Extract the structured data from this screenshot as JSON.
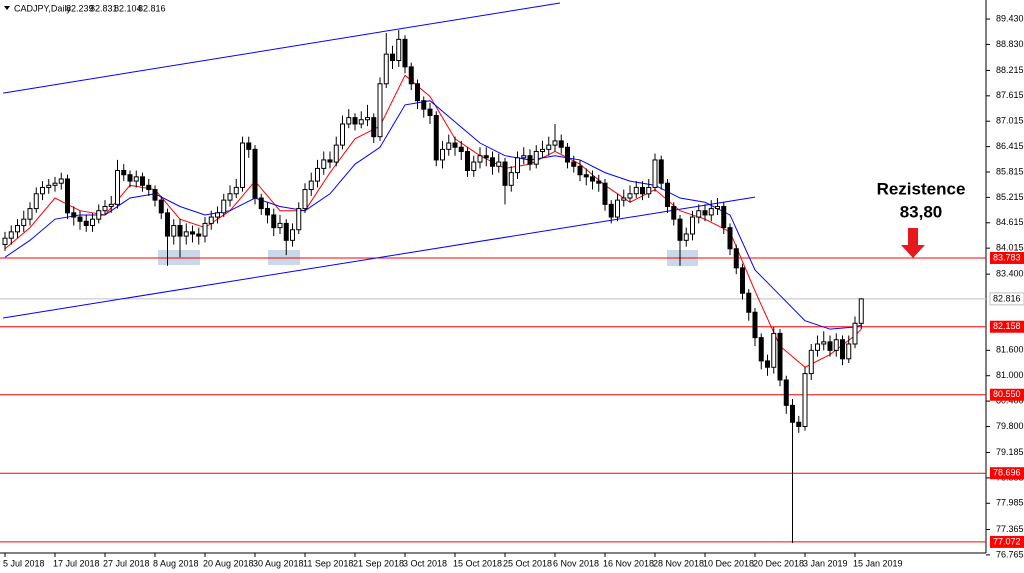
{
  "chart_data": {
    "type": "candlestick",
    "title": "CADJPY,Daily",
    "categories": [
      "5 Jul 2018",
      null,
      null,
      null,
      null,
      null,
      null,
      null,
      "17 Jul 2018",
      null,
      null,
      null,
      null,
      null,
      null,
      null,
      "27 Jul 2018",
      null,
      null,
      null,
      null,
      null,
      null,
      null,
      "8 Aug 2018",
      null,
      null,
      null,
      null,
      null,
      null,
      null,
      "20 Aug 2018",
      null,
      null,
      null,
      null,
      null,
      null,
      null,
      "30 Aug 2018",
      null,
      null,
      null,
      null,
      null,
      null,
      null,
      "11 Sep 2018",
      null,
      null,
      null,
      null,
      null,
      null,
      null,
      "21 Sep 2018",
      null,
      null,
      null,
      null,
      null,
      null,
      null,
      "3 Oct 2018",
      null,
      null,
      null,
      null,
      null,
      null,
      null,
      "15 Oct 2018",
      null,
      null,
      null,
      null,
      null,
      null,
      null,
      "25 Oct 2018",
      null,
      null,
      null,
      null,
      null,
      null,
      null,
      "6 Nov 2018",
      null,
      null,
      null,
      null,
      null,
      null,
      null,
      "16 Nov 2018",
      null,
      null,
      null,
      null,
      null,
      null,
      null,
      "28 Nov 2018",
      null,
      null,
      null,
      null,
      null,
      null,
      null,
      "10 Dec 2018",
      null,
      null,
      null,
      null,
      null,
      null,
      null,
      "20 Dec 2018",
      null,
      null,
      null,
      null,
      null,
      null,
      null,
      "3 Jan 2019",
      null,
      null,
      null,
      null,
      null,
      null,
      null,
      "15 Jan 2019",
      null
    ],
    "open": [
      84.1,
      84.25,
      84.4,
      84.55,
      84.7,
      84.95,
      85.3,
      85.45,
      85.5,
      85.55,
      85.65,
      84.85,
      84.75,
      84.65,
      84.55,
      84.7,
      84.9,
      85.0,
      85.05,
      85.85,
      85.75,
      85.6,
      85.7,
      85.5,
      85.4,
      85.15,
      84.85,
      84.3,
      84.55,
      84.3,
      84.4,
      84.35,
      84.3,
      84.6,
      84.75,
      84.85,
      85.15,
      85.3,
      85.45,
      86.5,
      86.35,
      85.2,
      84.95,
      84.8,
      84.5,
      84.6,
      84.2,
      84.45,
      84.95,
      85.4,
      85.6,
      85.9,
      86.1,
      86.05,
      86.45,
      86.95,
      87.1,
      86.95,
      87.05,
      87.1,
      86.65,
      87.9,
      88.6,
      88.45,
      88.95,
      88.3,
      87.9,
      87.5,
      87.3,
      87.15,
      86.1,
      86.35,
      86.5,
      86.4,
      86.3,
      85.85,
      86.05,
      86.2,
      86.15,
      85.95,
      86.05,
      85.5,
      85.8,
      86.15,
      86.2,
      86.0,
      86.3,
      86.35,
      86.45,
      86.55,
      86.4,
      86.05,
      85.95,
      85.75,
      85.7,
      85.6,
      85.55,
      85.05,
      84.75,
      85.15,
      85.2,
      85.3,
      85.45,
      85.3,
      85.45,
      86.1,
      85.55,
      85.0,
      84.7,
      84.2,
      84.35,
      84.75,
      84.9,
      84.8,
      84.95,
      85.0,
      84.5,
      84.0,
      83.55,
      82.95,
      82.5,
      81.9,
      81.35,
      81.2,
      82.0,
      80.9,
      80.3,
      79.9,
      79.8,
      81.05,
      81.6,
      81.75,
      81.8,
      81.6,
      81.85,
      81.4,
      81.75,
      82.239
    ],
    "high": [
      84.4,
      84.55,
      84.7,
      84.9,
      85.1,
      85.45,
      85.6,
      85.65,
      85.7,
      85.8,
      85.75,
      85.0,
      84.9,
      84.8,
      84.85,
      85.05,
      85.15,
      85.25,
      86.1,
      86.0,
      85.85,
      85.85,
      85.8,
      85.65,
      85.5,
      85.25,
      84.95,
      84.7,
      84.7,
      84.6,
      84.55,
      84.5,
      84.75,
      84.9,
      85.0,
      85.3,
      85.5,
      85.65,
      86.65,
      86.65,
      86.45,
      85.3,
      85.1,
      84.95,
      84.8,
      84.7,
      84.6,
      85.1,
      85.55,
      85.8,
      86.1,
      86.3,
      86.3,
      86.65,
      87.15,
      87.3,
      87.2,
      87.25,
      87.4,
      87.2,
      88.05,
      89.1,
      88.8,
      89.17,
      89.05,
      88.4,
      88.0,
      87.6,
      87.45,
      87.25,
      86.55,
      86.7,
      86.65,
      86.55,
      86.4,
      86.2,
      86.4,
      86.4,
      86.3,
      86.25,
      86.15,
      85.95,
      86.3,
      86.4,
      86.35,
      86.45,
      86.55,
      86.65,
      86.95,
      86.7,
      86.5,
      86.2,
      86.1,
      85.9,
      85.85,
      85.75,
      85.65,
      85.15,
      85.3,
      85.4,
      85.5,
      85.6,
      85.6,
      85.65,
      86.25,
      86.2,
      85.65,
      85.1,
      84.8,
      84.5,
      84.9,
      85.05,
      85.05,
      85.15,
      85.2,
      85.1,
      84.6,
      84.1,
      83.65,
      83.05,
      82.6,
      82.0,
      81.5,
      82.15,
      82.1,
      81.0,
      80.45,
      80.05,
      81.2,
      81.75,
      81.95,
      82.05,
      81.95,
      82.0,
      81.95,
      81.95,
      82.4,
      82.831
    ],
    "low": [
      83.95,
      84.1,
      84.25,
      84.4,
      84.55,
      84.85,
      85.15,
      85.3,
      85.35,
      85.4,
      84.7,
      84.55,
      84.45,
      84.4,
      84.4,
      84.6,
      84.8,
      84.85,
      84.95,
      85.6,
      85.45,
      85.45,
      85.35,
      85.25,
      85.0,
      84.7,
      83.6,
      84.1,
      83.8,
      84.1,
      84.15,
      84.1,
      84.15,
      84.45,
      84.6,
      84.75,
      85.0,
      85.2,
      85.35,
      86.15,
      85.05,
      84.8,
      84.6,
      84.3,
      84.35,
      83.85,
      84.05,
      84.35,
      84.85,
      85.25,
      85.45,
      85.75,
      85.9,
      85.95,
      86.35,
      86.85,
      86.8,
      86.85,
      86.9,
      86.5,
      86.55,
      87.8,
      88.25,
      88.3,
      88.15,
      87.75,
      87.3,
      87.1,
      86.95,
      85.95,
      85.9,
      86.2,
      86.2,
      86.1,
      85.7,
      85.7,
      85.9,
      85.95,
      85.75,
      85.8,
      85.05,
      85.35,
      85.65,
      86.0,
      85.85,
      85.9,
      86.15,
      86.2,
      86.3,
      86.25,
      85.9,
      85.8,
      85.6,
      85.5,
      85.4,
      85.35,
      84.9,
      84.6,
      84.65,
      85.0,
      85.1,
      85.2,
      85.15,
      85.2,
      85.35,
      85.4,
      84.85,
      84.55,
      83.6,
      84.05,
      84.2,
      84.6,
      84.65,
      84.65,
      84.8,
      84.35,
      83.85,
      83.4,
      82.8,
      82.3,
      81.7,
      81.15,
      81.0,
      81.05,
      80.75,
      80.1,
      77.05,
      79.65,
      79.7,
      80.9,
      81.45,
      81.6,
      81.45,
      81.45,
      81.25,
      81.3,
      81.65,
      82.104
    ],
    "close": [
      84.25,
      84.4,
      84.55,
      84.7,
      84.95,
      85.3,
      85.45,
      85.5,
      85.55,
      85.65,
      84.85,
      84.75,
      84.65,
      84.55,
      84.7,
      84.9,
      85.0,
      85.05,
      85.85,
      85.75,
      85.6,
      85.7,
      85.5,
      85.4,
      85.15,
      84.85,
      84.3,
      84.55,
      84.3,
      84.4,
      84.35,
      84.3,
      84.6,
      84.75,
      84.85,
      85.15,
      85.3,
      85.45,
      86.5,
      86.35,
      85.2,
      84.95,
      84.8,
      84.5,
      84.6,
      84.2,
      84.45,
      84.95,
      85.4,
      85.6,
      85.9,
      86.1,
      86.05,
      86.45,
      86.95,
      87.1,
      86.95,
      87.05,
      87.1,
      86.65,
      87.9,
      88.6,
      88.45,
      88.95,
      88.3,
      87.9,
      87.5,
      87.3,
      87.15,
      86.1,
      86.35,
      86.5,
      86.4,
      86.3,
      85.85,
      86.05,
      86.2,
      86.15,
      85.95,
      86.05,
      85.5,
      85.8,
      86.15,
      86.2,
      86.0,
      86.3,
      86.35,
      86.45,
      86.55,
      86.4,
      86.05,
      85.95,
      85.75,
      85.7,
      85.6,
      85.55,
      85.05,
      84.75,
      85.15,
      85.2,
      85.3,
      85.45,
      85.3,
      85.45,
      86.1,
      85.55,
      85.0,
      84.7,
      84.2,
      84.35,
      84.75,
      84.9,
      84.8,
      84.95,
      85.0,
      84.5,
      84.0,
      83.55,
      82.95,
      82.5,
      81.9,
      81.35,
      81.2,
      82.0,
      80.9,
      80.3,
      79.9,
      79.8,
      81.05,
      81.6,
      81.75,
      81.8,
      81.6,
      81.85,
      81.4,
      81.75,
      82.24,
      82.816
    ],
    "up_color": "#ffffff",
    "down_color": "#000000",
    "ylim": [
      76.81,
      89.88
    ],
    "yticks": [
      {
        "value": 89.43,
        "label": "89.430"
      },
      {
        "value": 88.83,
        "label": "88.830"
      },
      88.215,
      87.615,
      87.015,
      86.415,
      85.815,
      85.215,
      84.615,
      84.015,
      {
        "value": 83.4,
        "label": "83.400"
      },
      {
        "value": 81.6,
        "label": "81.600"
      },
      {
        "value": 81,
        "label": "81.000"
      },
      {
        "value": 80.4,
        "label": "80.400"
      },
      {
        "value": 79.8,
        "label": "79.800"
      },
      79.185,
      78.585,
      77.985,
      77.365,
      76.765
    ],
    "grid": false,
    "series": [
      {
        "color": "#ff0000",
        "x": [
          0,
          4,
          8,
          12,
          16,
          20,
          24,
          28,
          32,
          36,
          40,
          44,
          48,
          52,
          56,
          60,
          64,
          68,
          72,
          76,
          80,
          84,
          88,
          92,
          96,
          100,
          104,
          108,
          112,
          116,
          120,
          124,
          128,
          132,
          136,
          137
        ],
        "values": [
          84.0,
          84.5,
          85.2,
          84.9,
          84.8,
          85.5,
          85.4,
          84.7,
          84.5,
          84.9,
          85.6,
          84.9,
          84.9,
          85.8,
          86.6,
          86.9,
          88.1,
          87.6,
          86.6,
          86.2,
          85.9,
          86.0,
          86.3,
          86.0,
          85.5,
          85.1,
          85.4,
          84.9,
          84.7,
          84.4,
          83.0,
          81.7,
          81.2,
          81.5,
          81.95,
          82.1
        ]
      },
      {
        "color": "#0000ff",
        "x": [
          0,
          4,
          8,
          12,
          16,
          20,
          24,
          28,
          32,
          36,
          40,
          44,
          48,
          52,
          56,
          60,
          64,
          68,
          72,
          76,
          80,
          84,
          88,
          92,
          96,
          100,
          104,
          108,
          112,
          116,
          120,
          124,
          128,
          132,
          136,
          137
        ],
        "values": [
          83.8,
          84.2,
          84.7,
          84.8,
          84.8,
          85.2,
          85.3,
          85.0,
          84.8,
          84.9,
          85.2,
          85.0,
          84.9,
          85.3,
          86.0,
          86.4,
          87.4,
          87.5,
          87.0,
          86.5,
          86.2,
          86.1,
          86.2,
          86.1,
          85.8,
          85.6,
          85.5,
          85.2,
          85.1,
          84.8,
          83.5,
          82.9,
          82.3,
          82.1,
          82.15,
          82.2
        ]
      }
    ],
    "trendlines": [
      {
        "color": "#0000ff",
        "x": [
          -0.3,
          88.8
        ],
        "values": [
          87.68,
          89.81
        ]
      },
      {
        "color": "#0000ff",
        "x": [
          -0.3,
          120
        ],
        "values": [
          82.365,
          85.22
        ]
      }
    ],
    "levels": [
      {
        "value": 83.783,
        "color": "#ff0000"
      },
      {
        "value": 82.158,
        "color": "#ff0000"
      },
      {
        "value": 80.55,
        "label": "80.550",
        "color": "#ff0000"
      },
      {
        "value": 78.696,
        "color": "#ff0000"
      },
      {
        "value": 77.072,
        "color": "#ff0000"
      }
    ],
    "annotation": [
      "Rezistence",
      "83,80"
    ]
  }
}
